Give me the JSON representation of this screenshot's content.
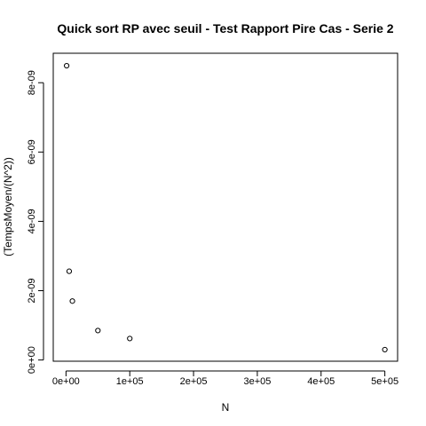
{
  "chart_data": {
    "type": "scatter",
    "title": "Quick sort RP avec seuil - Test Rapport Pire Cas - Serie 2",
    "xlabel": "N",
    "ylabel": "(TempsMoyen/(N^2))",
    "xlim": [
      -20000,
      520000
    ],
    "ylim": [
      -3.5e-11,
      8.85e-09
    ],
    "x_ticks": [
      0,
      100000,
      200000,
      300000,
      400000,
      500000
    ],
    "x_tick_labels": [
      "0e+00",
      "1e+05",
      "2e+05",
      "3e+05",
      "4e+05",
      "5e+05"
    ],
    "y_ticks": [
      0,
      2e-09,
      4e-09,
      6e-09,
      8e-09
    ],
    "y_tick_labels": [
      "0e+00",
      "2e-09",
      "4e-09",
      "6e-09",
      "8e-09"
    ],
    "grid": false,
    "points": [
      {
        "x": 1000,
        "y": 8.49e-09
      },
      {
        "x": 5000,
        "y": 2.56e-09
      },
      {
        "x": 10000,
        "y": 1.7e-09
      },
      {
        "x": 50000,
        "y": 8.5e-10
      },
      {
        "x": 100000,
        "y": 6.2e-10
      },
      {
        "x": 500000,
        "y": 3e-10
      }
    ]
  }
}
